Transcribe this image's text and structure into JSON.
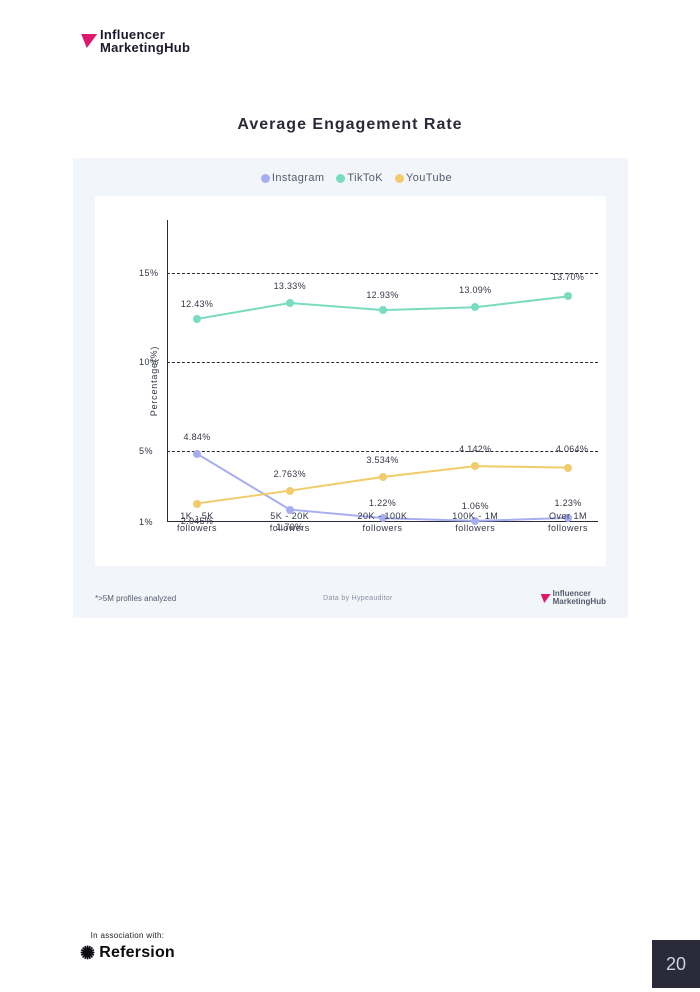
{
  "brand": {
    "line1": "Influencer",
    "line2": "MarketingHub",
    "accent_color": "#e0186d"
  },
  "chart": {
    "type": "line",
    "title": "Average Engagement Rate",
    "background_color": "#f2f6fb",
    "plot_background_color": "#ffffff",
    "grid_color": "#2a2a3a",
    "ylabel": "Percentage(%)",
    "label_fontsize": 9,
    "y_ticks": [
      {
        "value": 1,
        "label": "1%"
      },
      {
        "value": 5,
        "label": "5%"
      },
      {
        "value": 10,
        "label": "10%"
      },
      {
        "value": 15,
        "label": "15%"
      }
    ],
    "y_min": 1,
    "y_max": 18,
    "categories": [
      "1K - 5K followers",
      "5K - 20K followers",
      "20K - 100K followers",
      "100K - 1M followers",
      "Over 1M followers"
    ],
    "marker_radius": 4,
    "line_width": 2,
    "series": [
      {
        "name": "Instagram",
        "color": "#a7aef0",
        "points": [
          {
            "v": 4.84,
            "label": "4.84%",
            "label_dy": -12
          },
          {
            "v": 1.7,
            "label": "1.70%",
            "label_dy": 12
          },
          {
            "v": 1.22,
            "label": "1.22%",
            "label_dy": -10
          },
          {
            "v": 1.06,
            "label": "1.06%",
            "label_dy": -10
          },
          {
            "v": 1.23,
            "label": "1.23%",
            "label_dy": -10
          }
        ]
      },
      {
        "name": "TikToK",
        "color": "#79dbc0",
        "points": [
          {
            "v": 12.43,
            "label": "12.43%",
            "label_dy": -10
          },
          {
            "v": 13.33,
            "label": "13.33%",
            "label_dy": -12
          },
          {
            "v": 12.93,
            "label": "12.93%",
            "label_dy": -10
          },
          {
            "v": 13.09,
            "label": "13.09%",
            "label_dy": -12
          },
          {
            "v": 13.7,
            "label": "13.70%",
            "label_dy": -14
          }
        ]
      },
      {
        "name": "YouTube",
        "color": "#f0cc6a",
        "points": [
          {
            "v": 2.045,
            "label": "2.045%",
            "label_dy": 12
          },
          {
            "v": 2.763,
            "label": "2.763%",
            "label_dy": -12
          },
          {
            "v": 3.534,
            "label": "3.534%",
            "label_dy": -12
          },
          {
            "v": 4.142,
            "label": "4.142%",
            "label_dy": -12
          },
          {
            "v": 4.064,
            "label": "4.064%",
            "label_dy": -14,
            "label_dx": 4
          }
        ]
      }
    ],
    "footnote_left": "*>5M profiles analyzed",
    "footnote_mid": "Data by Hypeauditor"
  },
  "association": {
    "label": "In association with:",
    "brand_name": "Refersion"
  },
  "page_number": "20",
  "page_number_bg": "#2a2a3a",
  "page_number_color": "#cfd3df"
}
